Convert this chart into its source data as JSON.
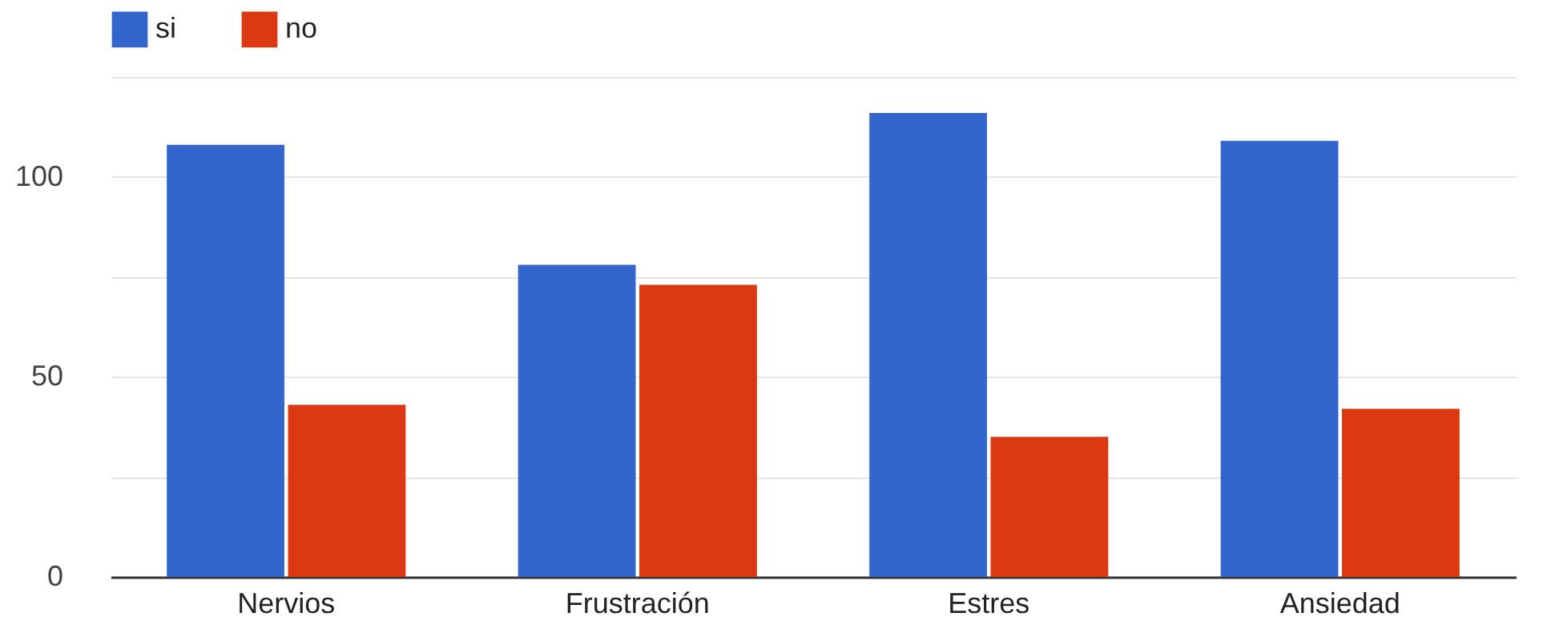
{
  "chart_data": {
    "type": "bar",
    "categories": [
      "Nervios",
      "Frustración",
      "Estres",
      "Ansiedad"
    ],
    "series": [
      {
        "name": "si",
        "color": "#3366cc",
        "values": [
          108,
          78,
          116,
          109
        ]
      },
      {
        "name": "no",
        "color": "#dc3912",
        "values": [
          43,
          73,
          35,
          42
        ]
      }
    ],
    "ylim": [
      0,
      125
    ],
    "yticks": [
      0,
      {
        "value": 25,
        "label": null
      },
      50,
      {
        "value": 75,
        "label": null
      },
      100,
      {
        "value": 125,
        "label": null
      }
    ],
    "grid": "y",
    "legend": "top left"
  }
}
